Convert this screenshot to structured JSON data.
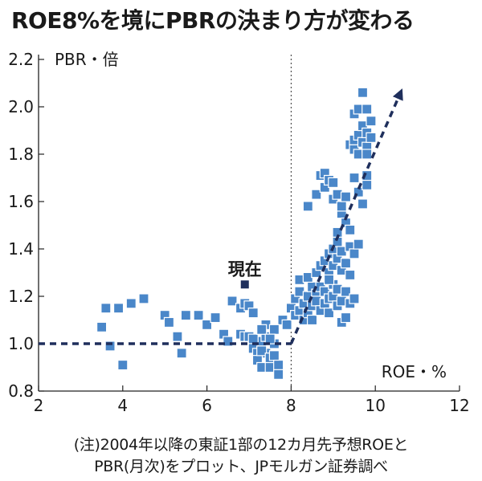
{
  "title": "ROE8%を境にPBRの決まり方が変わる",
  "note_line1": "(注)2004年以降の東証1部の12カ月先予想ROEと",
  "note_line2": "PBR(月次)をプロット、JPモルガン証券調べ",
  "colors": {
    "points": "#4a87c9",
    "current": "#1f2f5c",
    "trend": "#1f2f5c",
    "axis": "#222222"
  },
  "chart_data": {
    "type": "scatter",
    "ylabel": "PBR・倍",
    "xlabel": "ROE・%",
    "xlim": [
      2,
      12
    ],
    "ylim": [
      0.8,
      2.2
    ],
    "x_ticks": [
      "2",
      "4",
      "6",
      "8",
      "10",
      "12"
    ],
    "y_ticks": [
      "0.8",
      "1.0",
      "1.2",
      "1.4",
      "1.6",
      "1.8",
      "2.0",
      "2.2"
    ],
    "vertical_reference_x": 8,
    "current_label": "現在",
    "current_point": {
      "x": 6.9,
      "y": 1.25
    },
    "trend_lines": [
      {
        "style": "dashed-flat",
        "x": [
          2,
          8
        ],
        "y": [
          1.0,
          1.0
        ]
      },
      {
        "style": "dashed-arrow",
        "x": [
          8,
          10.6
        ],
        "y": [
          1.0,
          2.06
        ]
      }
    ],
    "points": [
      [
        3.5,
        1.07
      ],
      [
        3.6,
        1.15
      ],
      [
        3.7,
        0.99
      ],
      [
        3.9,
        1.15
      ],
      [
        4.0,
        0.91
      ],
      [
        4.2,
        1.17
      ],
      [
        4.5,
        1.19
      ],
      [
        5.0,
        1.12
      ],
      [
        5.1,
        1.09
      ],
      [
        5.3,
        1.03
      ],
      [
        5.4,
        0.96
      ],
      [
        5.5,
        1.12
      ],
      [
        5.8,
        1.12
      ],
      [
        6.0,
        1.08
      ],
      [
        6.2,
        1.11
      ],
      [
        6.4,
        1.04
      ],
      [
        6.5,
        1.01
      ],
      [
        6.6,
        1.18
      ],
      [
        6.8,
        1.15
      ],
      [
        6.9,
        1.17
      ],
      [
        7.0,
        1.16
      ],
      [
        7.1,
        1.13
      ],
      [
        7.3,
        1.01
      ],
      [
        7.4,
        0.96
      ],
      [
        7.6,
        1.0
      ],
      [
        7.8,
        1.1
      ],
      [
        7.9,
        1.08
      ],
      [
        6.8,
        1.04
      ],
      [
        6.9,
        1.03
      ],
      [
        7.0,
        1.03
      ],
      [
        7.1,
        1.02
      ],
      [
        7.1,
        0.98
      ],
      [
        7.2,
        0.96
      ],
      [
        7.2,
        0.93
      ],
      [
        7.3,
        0.9
      ],
      [
        7.3,
        0.97
      ],
      [
        7.4,
        1.08
      ],
      [
        7.4,
        1.03
      ],
      [
        7.5,
        0.94
      ],
      [
        7.5,
        0.9
      ],
      [
        7.6,
        1.06
      ],
      [
        7.6,
        0.95
      ],
      [
        7.7,
        0.91
      ],
      [
        7.7,
        0.87
      ],
      [
        7.3,
        1.06
      ],
      [
        7.5,
        1.02
      ],
      [
        8.0,
        1.15
      ],
      [
        8.1,
        1.12
      ],
      [
        8.1,
        1.19
      ],
      [
        8.2,
        1.14
      ],
      [
        8.2,
        1.22
      ],
      [
        8.3,
        1.1
      ],
      [
        8.3,
        1.17
      ],
      [
        8.4,
        1.2
      ],
      [
        8.4,
        1.13
      ],
      [
        8.5,
        1.24
      ],
      [
        8.5,
        1.16
      ],
      [
        8.5,
        1.1
      ],
      [
        8.6,
        1.21
      ],
      [
        8.6,
        1.18
      ],
      [
        8.7,
        1.14
      ],
      [
        8.7,
        1.24
      ],
      [
        8.8,
        1.17
      ],
      [
        8.8,
        1.22
      ],
      [
        8.9,
        1.19
      ],
      [
        8.9,
        1.13
      ],
      [
        9.0,
        1.2
      ],
      [
        9.0,
        1.25
      ],
      [
        9.1,
        1.16
      ],
      [
        9.1,
        1.23
      ],
      [
        9.2,
        1.18
      ],
      [
        9.3,
        1.22
      ],
      [
        9.4,
        1.17
      ],
      [
        9.5,
        1.19
      ],
      [
        8.2,
        1.27
      ],
      [
        8.4,
        1.28
      ],
      [
        8.6,
        1.3
      ],
      [
        8.7,
        1.33
      ],
      [
        8.8,
        1.35
      ],
      [
        8.9,
        1.3
      ],
      [
        8.9,
        1.38
      ],
      [
        9.0,
        1.4
      ],
      [
        9.0,
        1.33
      ],
      [
        9.1,
        1.36
      ],
      [
        9.1,
        1.43
      ],
      [
        9.2,
        1.39
      ],
      [
        9.2,
        1.31
      ],
      [
        9.3,
        1.34
      ],
      [
        9.4,
        1.41
      ],
      [
        9.5,
        1.38
      ],
      [
        9.6,
        1.42
      ],
      [
        9.2,
        1.09
      ],
      [
        9.3,
        1.11
      ],
      [
        8.9,
        1.27
      ],
      [
        9.4,
        1.29
      ],
      [
        8.4,
        1.58
      ],
      [
        8.6,
        1.63
      ],
      [
        8.7,
        1.71
      ],
      [
        8.8,
        1.66
      ],
      [
        8.8,
        1.72
      ],
      [
        8.9,
        1.69
      ],
      [
        9.0,
        1.61
      ],
      [
        9.0,
        1.68
      ],
      [
        9.1,
        1.63
      ],
      [
        9.2,
        1.55
      ],
      [
        9.2,
        1.58
      ],
      [
        9.3,
        1.51
      ],
      [
        9.4,
        1.48
      ],
      [
        9.5,
        1.7
      ],
      [
        9.6,
        1.64
      ],
      [
        9.7,
        1.59
      ],
      [
        9.8,
        1.67
      ],
      [
        9.8,
        1.71
      ],
      [
        9.1,
        1.47
      ],
      [
        9.3,
        1.62
      ],
      [
        9.4,
        1.84
      ],
      [
        9.5,
        1.82
      ],
      [
        9.5,
        1.86
      ],
      [
        9.6,
        1.8
      ],
      [
        9.6,
        1.88
      ],
      [
        9.7,
        1.85
      ],
      [
        9.7,
        1.92
      ],
      [
        9.8,
        1.83
      ],
      [
        9.8,
        1.89
      ],
      [
        9.9,
        1.94
      ],
      [
        9.9,
        1.87
      ],
      [
        9.5,
        1.97
      ],
      [
        9.6,
        1.99
      ],
      [
        9.8,
        1.99
      ],
      [
        9.7,
        2.06
      ],
      [
        9.8,
        1.8
      ]
    ]
  }
}
